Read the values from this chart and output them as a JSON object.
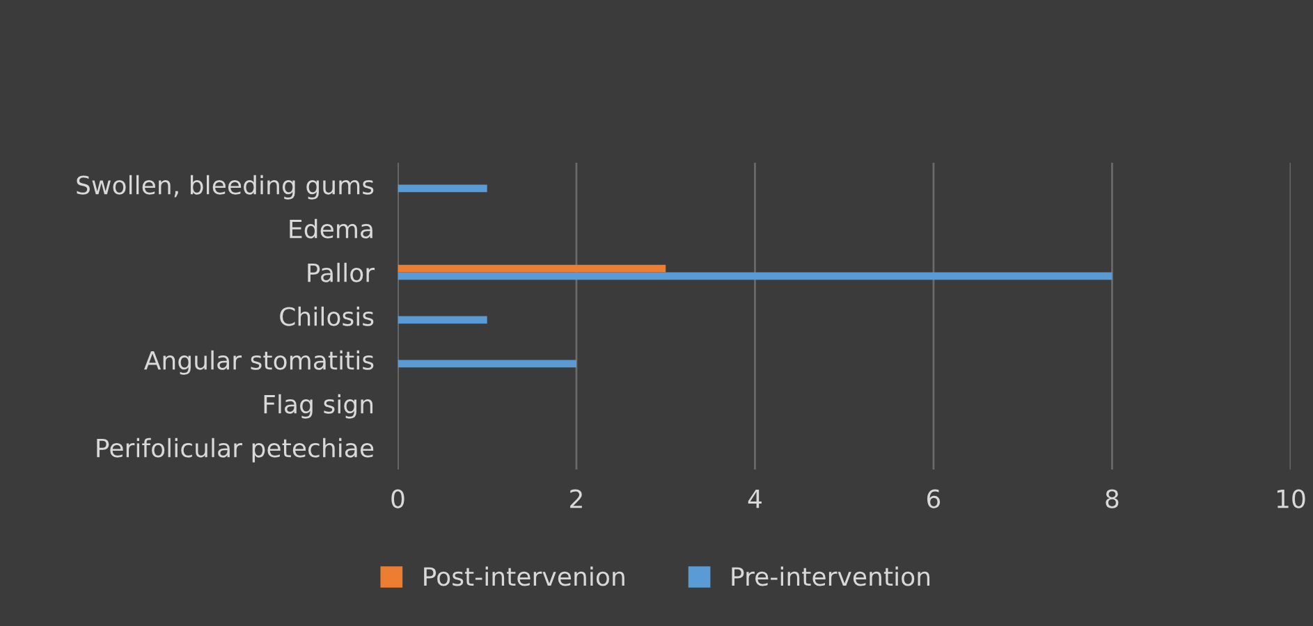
{
  "chart_data": {
    "type": "bar",
    "orientation": "horizontal",
    "categories": [
      "Swollen, bleeding gums",
      "Edema",
      "Pallor",
      "Chilosis",
      "Angular stomatitis",
      "Flag sign",
      "Perifolicular petechiae"
    ],
    "series": [
      {
        "name": "Post-intervenion",
        "color": "#ed7d31",
        "values": [
          0,
          0,
          3,
          0,
          0,
          0,
          0
        ]
      },
      {
        "name": "Pre-intervention",
        "color": "#5b9bd5",
        "values": [
          1,
          0,
          8,
          1,
          2,
          0,
          0
        ]
      }
    ],
    "xlim": [
      0,
      10
    ],
    "xticks": [
      0,
      2,
      4,
      6,
      8,
      10
    ],
    "grid": "x",
    "legend": "bottom"
  }
}
